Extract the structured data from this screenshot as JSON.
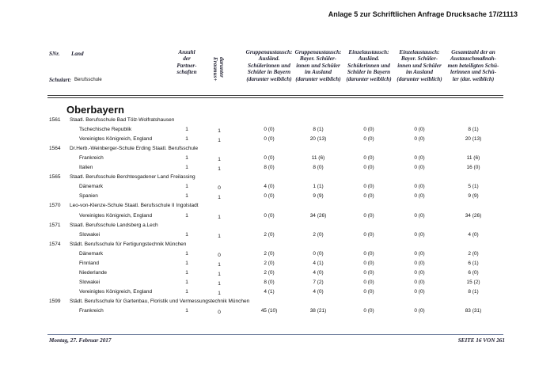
{
  "header": {
    "title": "Anlage 5 zur Schriftlichen Anfrage Drucksache 17/21113"
  },
  "table": {
    "columns": {
      "snr": "SNr.",
      "land": "Land",
      "schulart_label": "Schulart:",
      "schulart": "Berufsschule",
      "partners": [
        "Anzahl",
        "der",
        "Partner-",
        "schaften"
      ],
      "erasmus": [
        "darunter",
        "Erasmus+"
      ],
      "exchange": [
        [
          "Gruppenaustausch:",
          "Ausländ.",
          "Schülerinnen und",
          "Schüler in Bayern",
          "(darunter weiblich)"
        ],
        [
          "Gruppenaustausch:",
          "Bayer. Schüler-",
          "innen und Schüler",
          "im Ausland",
          "(darunter weiblich)"
        ],
        [
          "Einzelaustausch:",
          "Ausländ.",
          "Schülerinnen und",
          "Schüler in Bayern",
          "(darunter weiblich)"
        ],
        [
          "Einzelaustausch:",
          "Bayer. Schüler-",
          "innen und Schüler",
          "im Ausland",
          "(darunter weiblich)"
        ],
        [
          "Gesamtzahl der an",
          "Austauschmaßnah-",
          "men beteiligten Schü-",
          "lerinnen und Schü-",
          "ler (dar. weiblich)"
        ]
      ]
    },
    "region": "Oberbayern",
    "schools": [
      {
        "number": "1561",
        "name": "Staatl. Berufsschule Bad Tölz-Wolfratshausen",
        "rows": [
          [
            "Tschechische Republik",
            "1",
            "1",
            "0 (0)",
            "8 (1)",
            "0 (0)",
            "0 (0)",
            "8 (1)"
          ],
          [
            "Vereinigtes Königreich, England",
            "1",
            "1",
            "0 (0)",
            "20 (13)",
            "0 (0)",
            "0 (0)",
            "20 (13)"
          ]
        ]
      },
      {
        "number": "1564",
        "name": "Dr.Herb.-Weinberger-Schule Erding Staatl. Berufsschule",
        "rows": [
          [
            "Frankreich",
            "1",
            "1",
            "0 (0)",
            "11 (6)",
            "0 (0)",
            "0 (0)",
            "11 (6)"
          ],
          [
            "Italien",
            "1",
            "1",
            "8 (0)",
            "8 (0)",
            "0 (0)",
            "0 (0)",
            "16 (0)"
          ]
        ]
      },
      {
        "number": "1565",
        "name": "Staatl. Berufsschule Berchtesgadener Land Freilassing",
        "rows": [
          [
            "Dänemark",
            "1",
            "0",
            "4 (0)",
            "1 (1)",
            "0 (0)",
            "0 (0)",
            "5 (1)"
          ],
          [
            "Spanien",
            "1",
            "1",
            "0 (0)",
            "9 (9)",
            "0 (0)",
            "0 (0)",
            "9 (9)"
          ]
        ]
      },
      {
        "number": "1570",
        "name": "Leo-von-Klenze-Schule Staatl. Berufsschule II Ingolstadt",
        "rows": [
          [
            "Vereinigtes Königreich, England",
            "1",
            "1",
            "0 (0)",
            "34 (26)",
            "0 (0)",
            "0 (0)",
            "34 (26)"
          ]
        ]
      },
      {
        "number": "1571",
        "name": "Staatl. Berufsschule Landsberg a.Lech",
        "rows": [
          [
            "Slowakei",
            "1",
            "1",
            "2 (0)",
            "2 (0)",
            "0 (0)",
            "0 (0)",
            "4 (0)"
          ]
        ]
      },
      {
        "number": "1574",
        "name": "Städt. Berufsschule für Fertigungstechnik München",
        "rows": [
          [
            "Dänemark",
            "1",
            "0",
            "2 (0)",
            "0 (0)",
            "0 (0)",
            "0 (0)",
            "2 (0)"
          ],
          [
            "Finnland",
            "1",
            "1",
            "2 (0)",
            "4 (1)",
            "0 (0)",
            "0 (0)",
            "6 (1)"
          ],
          [
            "Niederlande",
            "1",
            "1",
            "2 (0)",
            "4 (0)",
            "0 (0)",
            "0 (0)",
            "6 (0)"
          ],
          [
            "Slowakei",
            "1",
            "1",
            "8 (0)",
            "7 (2)",
            "0 (0)",
            "0 (0)",
            "15 (2)"
          ],
          [
            "Vereinigtes Königreich, England",
            "1",
            "1",
            "4 (1)",
            "4 (0)",
            "0 (0)",
            "0 (0)",
            "8 (1)"
          ]
        ]
      },
      {
        "number": "1599",
        "name": "Städt. Berufsschule für Gartenbau, Floristik und Vermessungstechnik München",
        "rows": [
          [
            "Frankreich",
            "1",
            "0",
            "45 (10)",
            "38 (21)",
            "0 (0)",
            "0 (0)",
            "83 (31)"
          ]
        ]
      }
    ]
  },
  "footer": {
    "date": "Montag, 27. Februar 2017",
    "page": "SEITE 16 VON 261"
  }
}
